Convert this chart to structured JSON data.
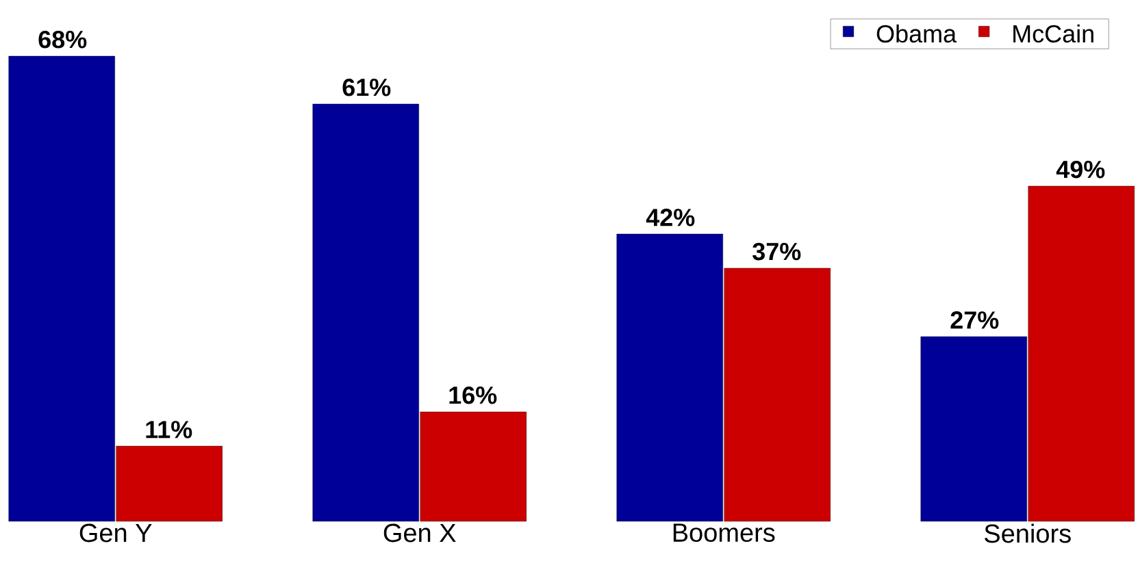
{
  "chart_data": {
    "type": "bar",
    "categories": [
      "Gen Y",
      "Gen X",
      "Boomers",
      "Seniors"
    ],
    "series": [
      {
        "name": "Obama",
        "color": "#000099",
        "values": [
          68,
          61,
          42,
          27
        ],
        "value_labels": [
          "68%",
          "61%",
          "42%",
          "27%"
        ]
      },
      {
        "name": "McCain",
        "color": "#cc0000",
        "values": [
          11,
          16,
          37,
          49
        ],
        "value_labels": [
          "11%",
          "16%",
          "37%",
          "49%"
        ]
      }
    ],
    "ylim": [
      0,
      72
    ],
    "legend": "top right"
  }
}
